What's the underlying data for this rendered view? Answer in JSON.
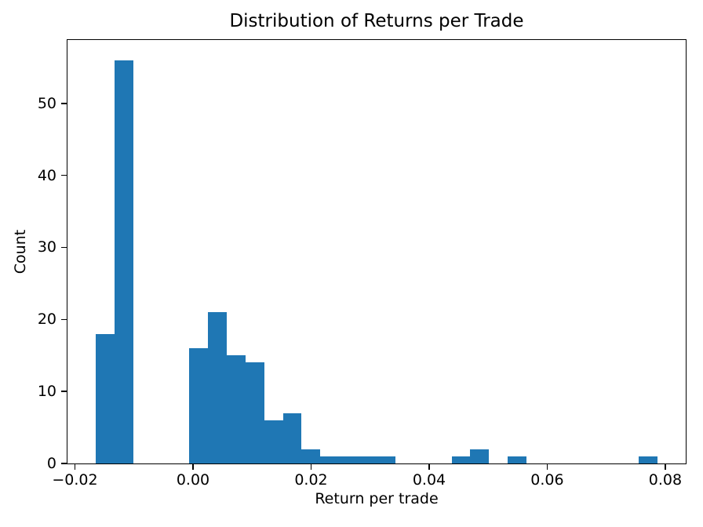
{
  "chart_data": {
    "type": "histogram",
    "title": "Distribution of Returns per Trade",
    "xlabel": "Return per trade",
    "ylabel": "Count",
    "bar_color": "#1f77b4",
    "axis_color": "#000000",
    "background_color": "#ffffff",
    "grid": false,
    "legend": null,
    "xlim": [
      -0.02126,
      0.08346
    ],
    "ylim": [
      0,
      58.8
    ],
    "bin_edges": [
      -0.0165,
      -0.0133267,
      -0.0101533,
      -0.00698,
      -0.0038067,
      -0.0006333,
      0.00254,
      0.0057133,
      0.0088867,
      0.01206,
      0.0152333,
      0.0184067,
      0.02158,
      0.0247533,
      0.0279267,
      0.0311,
      0.0342733,
      0.0374467,
      0.04062,
      0.0437933,
      0.0469667,
      0.05014,
      0.0533133,
      0.0564867,
      0.05966,
      0.0628333,
      0.0660067,
      0.06918,
      0.0723533,
      0.0755267,
      0.0787
    ],
    "counts": [
      18,
      56,
      0,
      0,
      0,
      16,
      21,
      15,
      14,
      6,
      7,
      2,
      1,
      1,
      1,
      1,
      0,
      0,
      0,
      1,
      2,
      0,
      1,
      0,
      0,
      0,
      0,
      0,
      0,
      1
    ],
    "xticks": {
      "values": [
        -0.02,
        0.0,
        0.02,
        0.04,
        0.06,
        0.08
      ],
      "labels": [
        "−0.02",
        "0.00",
        "0.02",
        "0.04",
        "0.06",
        "0.08"
      ]
    },
    "yticks": {
      "values": [
        0,
        10,
        20,
        30,
        40,
        50
      ],
      "labels": [
        "0",
        "10",
        "20",
        "30",
        "40",
        "50"
      ]
    }
  }
}
